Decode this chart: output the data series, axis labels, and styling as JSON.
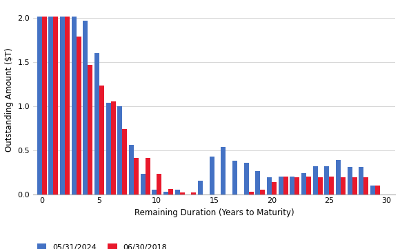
{
  "x_positions": [
    0,
    1,
    2,
    3,
    4,
    5,
    6,
    7,
    8,
    9,
    10,
    11,
    12,
    13,
    14,
    15,
    16,
    17,
    18,
    19,
    20,
    21,
    22,
    23,
    24,
    25,
    26,
    27,
    28,
    29,
    30
  ],
  "blue_values": [
    2.02,
    2.02,
    2.02,
    2.02,
    1.97,
    1.6,
    1.04,
    1.0,
    0.56,
    0.23,
    0.05,
    0.03,
    0.05,
    0.0,
    0.15,
    0.43,
    0.54,
    0.38,
    0.36,
    0.26,
    0.19,
    0.2,
    0.2,
    0.24,
    0.32,
    0.32,
    0.39,
    0.31,
    0.31,
    0.1,
    0.0
  ],
  "red_values": [
    2.02,
    2.02,
    2.02,
    1.79,
    1.47,
    1.23,
    1.05,
    0.74,
    0.41,
    0.41,
    0.23,
    0.06,
    0.02,
    0.02,
    0.0,
    0.0,
    0.0,
    0.0,
    0.03,
    0.05,
    0.14,
    0.2,
    0.19,
    0.2,
    0.19,
    0.2,
    0.19,
    0.19,
    0.19,
    0.1,
    0.0
  ],
  "blue_color": "#4472C4",
  "red_color": "#E8192C",
  "xlabel": "Remaining Duration (Years to Maturity)",
  "ylabel": "Outstanding Amount ($T)",
  "ylim": [
    0,
    2.15
  ],
  "yticks": [
    0,
    0.5,
    1.0,
    1.5,
    2.0
  ],
  "xticks": [
    0,
    5,
    10,
    15,
    20,
    25,
    30
  ],
  "legend_blue": "05/31/2024",
  "legend_red": "06/30/2018",
  "bar_width": 0.42,
  "background_color": "#FFFFFF",
  "grid_color": "#D0D0D0"
}
